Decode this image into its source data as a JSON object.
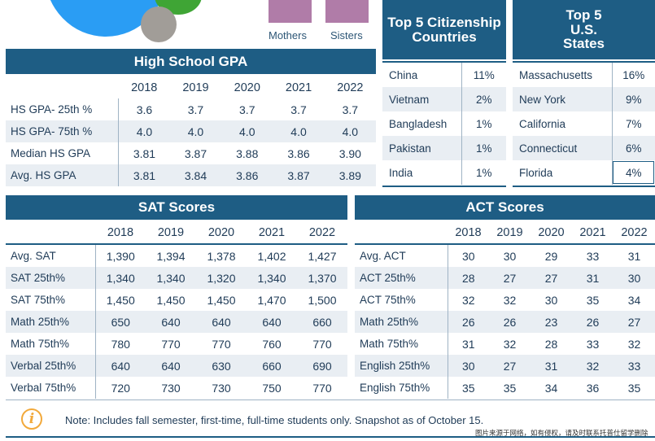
{
  "colors": {
    "header": "#1e5d84",
    "alt_row": "#e9eef3",
    "bar": "#b07ca8",
    "accent": "#f2a93b"
  },
  "parents_chart": {
    "labels": [
      "Mothers",
      "Sisters"
    ]
  },
  "gpa": {
    "title": "High School GPA",
    "years": [
      "2018",
      "2019",
      "2020",
      "2021",
      "2022"
    ],
    "rows": [
      {
        "label": "HS GPA- 25th %",
        "values": [
          "3.6",
          "3.7",
          "3.7",
          "3.7",
          "3.7"
        ]
      },
      {
        "label": "HS GPA- 75th %",
        "values": [
          "4.0",
          "4.0",
          "4.0",
          "4.0",
          "4.0"
        ]
      },
      {
        "label": "Median HS GPA",
        "values": [
          "3.81",
          "3.87",
          "3.88",
          "3.86",
          "3.90"
        ]
      },
      {
        "label": "Avg. HS GPA",
        "values": [
          "3.81",
          "3.84",
          "3.86",
          "3.87",
          "3.89"
        ]
      }
    ]
  },
  "citizenship": {
    "title": "Top 5 Citizenship Countries",
    "rows": [
      {
        "name": "China",
        "pct": "11%"
      },
      {
        "name": "Vietnam",
        "pct": "2%"
      },
      {
        "name": "Bangladesh",
        "pct": "1%"
      },
      {
        "name": "Pakistan",
        "pct": "1%"
      },
      {
        "name": "India",
        "pct": "1%"
      }
    ]
  },
  "states": {
    "title_line1": "Top 5",
    "title_line2": "U.S.",
    "title_line3": "States",
    "rows": [
      {
        "name": "Massachusetts",
        "pct": "16%"
      },
      {
        "name": "New York",
        "pct": "9%"
      },
      {
        "name": "California",
        "pct": "7%"
      },
      {
        "name": "Connecticut",
        "pct": "6%"
      },
      {
        "name": "Florida",
        "pct": "4%"
      }
    ]
  },
  "sat": {
    "title": "SAT Scores",
    "years": [
      "2018",
      "2019",
      "2020",
      "2021",
      "2022"
    ],
    "rows": [
      {
        "label": "Avg. SAT",
        "values": [
          "1,390",
          "1,394",
          "1,378",
          "1,402",
          "1,427"
        ]
      },
      {
        "label": "SAT 25th%",
        "values": [
          "1,340",
          "1,340",
          "1,320",
          "1,340",
          "1,370"
        ]
      },
      {
        "label": "SAT 75th%",
        "values": [
          "1,450",
          "1,450",
          "1,450",
          "1,470",
          "1,500"
        ]
      },
      {
        "label": "Math 25th%",
        "values": [
          "650",
          "640",
          "640",
          "640",
          "660"
        ]
      },
      {
        "label": "Math 75th%",
        "values": [
          "780",
          "770",
          "770",
          "760",
          "770"
        ]
      },
      {
        "label": "Verbal 25th%",
        "values": [
          "640",
          "640",
          "630",
          "660",
          "690"
        ]
      },
      {
        "label": "Verbal 75th%",
        "values": [
          "720",
          "730",
          "730",
          "750",
          "770"
        ]
      }
    ]
  },
  "act": {
    "title": "ACT Scores",
    "years": [
      "2018",
      "2019",
      "2020",
      "2021",
      "2022"
    ],
    "rows": [
      {
        "label": "Avg. ACT",
        "values": [
          "30",
          "30",
          "29",
          "33",
          "31"
        ]
      },
      {
        "label": "ACT 25th%",
        "values": [
          "28",
          "27",
          "27",
          "31",
          "30"
        ]
      },
      {
        "label": "ACT 75th%",
        "values": [
          "32",
          "32",
          "30",
          "35",
          "34"
        ]
      },
      {
        "label": "Math 25th%",
        "values": [
          "26",
          "26",
          "23",
          "26",
          "27"
        ]
      },
      {
        "label": "Math 75th%",
        "values": [
          "31",
          "32",
          "28",
          "33",
          "32"
        ]
      },
      {
        "label": "English 25th%",
        "values": [
          "30",
          "27",
          "31",
          "32",
          "33"
        ]
      },
      {
        "label": "English 75th%",
        "values": [
          "35",
          "35",
          "34",
          "36",
          "35"
        ]
      }
    ]
  },
  "note": "Note: Includes fall semester, first-time, full-time students only. Snapshot as of October 15.",
  "watermark": "图片来源于网络，如有侵权，请及时联系托普仕留学删除"
}
